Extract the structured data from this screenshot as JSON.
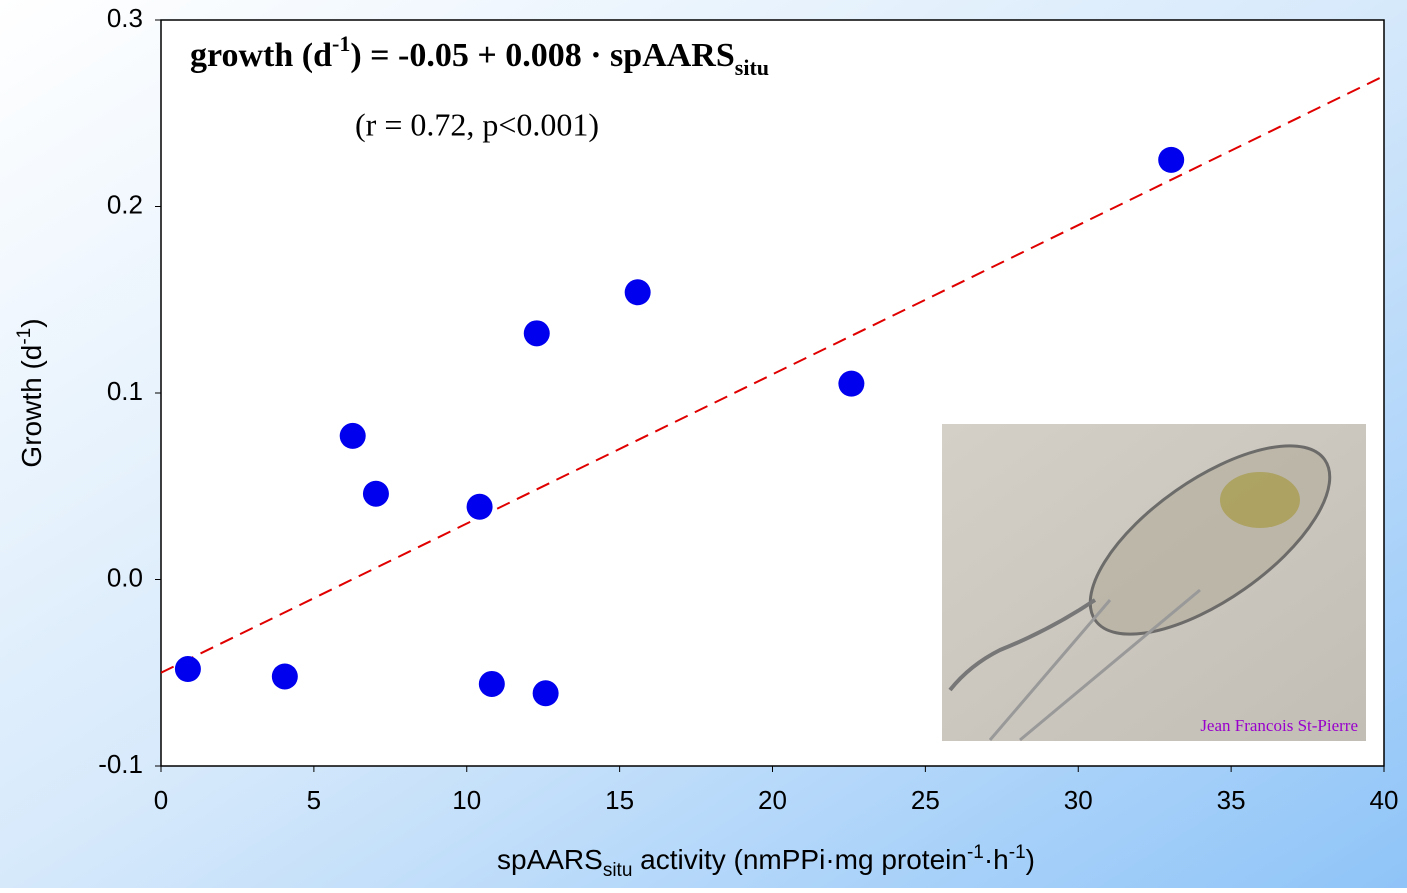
{
  "chart_data": {
    "type": "scatter",
    "x": [
      0.88,
      4.05,
      6.27,
      7.03,
      10.42,
      10.82,
      12.29,
      12.58,
      15.59,
      22.58,
      33.04
    ],
    "values": [
      -0.048,
      -0.052,
      0.077,
      0.046,
      0.039,
      -0.056,
      0.132,
      -0.061,
      0.154,
      0.105,
      0.225
    ],
    "color": "#0000ee",
    "xlim": [
      0,
      40
    ],
    "xticks": [
      0,
      5,
      10,
      15,
      20,
      25,
      30,
      35,
      40
    ],
    "ylim": [
      -0.1,
      0.3
    ],
    "yticks": [
      -0.1,
      {
        "value": 0,
        "label": "0.0"
      },
      0.1,
      0.2,
      0.3
    ],
    "trendline": {
      "intercept": -0.05,
      "slope": 0.008,
      "color": "#e00000"
    },
    "equation": [
      "growth (d",
      "-1",
      ") = -0.05 + 0.008 · spAARS",
      "situ"
    ],
    "stats": "(r = 0.72, p<0.001)",
    "y_label": [
      "Growth (d",
      "-1",
      ")"
    ],
    "x_label": [
      "spAARS",
      "situ",
      " activity (nmPPi·mg protein",
      "-1",
      "·h",
      "-1",
      ")"
    ],
    "photo_credit": "Jean Francois St-Pierre"
  }
}
